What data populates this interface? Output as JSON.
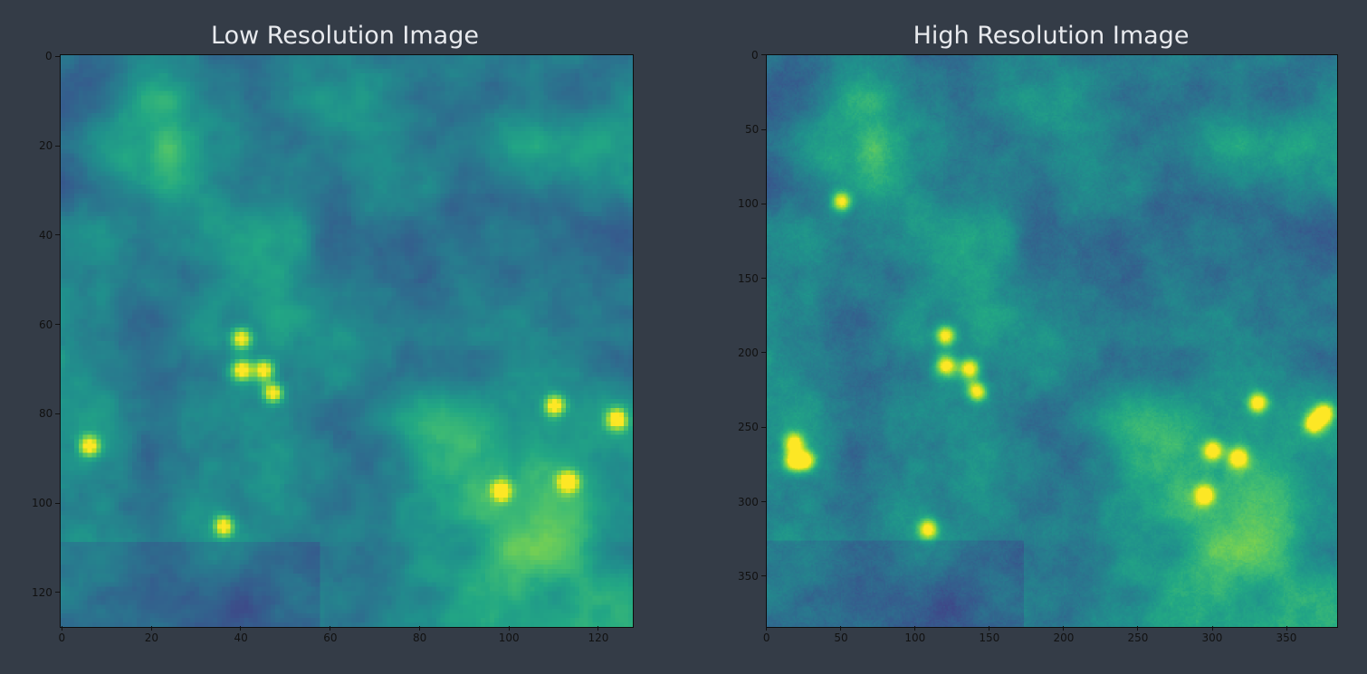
{
  "figure": {
    "colormap": "viridis",
    "background": "#343c47"
  },
  "panels": [
    {
      "title": "Low Resolution Image",
      "image_size": 128,
      "resolution": "low",
      "x_ticks": [
        "0",
        "20",
        "40",
        "60",
        "80",
        "100",
        "120"
      ],
      "x_tick_values": [
        0,
        20,
        40,
        60,
        80,
        100,
        120
      ],
      "y_ticks": [
        "0",
        "20",
        "40",
        "60",
        "80",
        "100",
        "120"
      ],
      "y_tick_values": [
        0,
        20,
        40,
        60,
        80,
        100,
        120
      ],
      "bright_spots": [
        {
          "x": 40,
          "y": 63
        },
        {
          "x": 40,
          "y": 70
        },
        {
          "x": 45,
          "y": 70
        },
        {
          "x": 47,
          "y": 75
        },
        {
          "x": 110,
          "y": 78
        },
        {
          "x": 124,
          "y": 81
        },
        {
          "x": 6,
          "y": 87
        },
        {
          "x": 98,
          "y": 97
        },
        {
          "x": 36,
          "y": 105
        },
        {
          "x": 113,
          "y": 95
        }
      ]
    },
    {
      "title": "High Resolution Image",
      "image_size": 384,
      "resolution": "high",
      "x_ticks": [
        "0",
        "50",
        "100",
        "150",
        "200",
        "250",
        "300",
        "350"
      ],
      "x_tick_values": [
        0,
        50,
        100,
        150,
        200,
        250,
        300,
        350
      ],
      "y_ticks": [
        "0",
        "50",
        "100",
        "150",
        "200",
        "250",
        "300",
        "350"
      ],
      "y_tick_values": [
        0,
        50,
        100,
        150,
        200,
        250,
        300,
        350
      ],
      "bright_spots": [
        {
          "x": 120,
          "y": 188
        },
        {
          "x": 120,
          "y": 208
        },
        {
          "x": 136,
          "y": 210
        },
        {
          "x": 141,
          "y": 225
        },
        {
          "x": 330,
          "y": 233
        },
        {
          "x": 375,
          "y": 240
        },
        {
          "x": 368,
          "y": 247
        },
        {
          "x": 18,
          "y": 260
        },
        {
          "x": 26,
          "y": 272
        },
        {
          "x": 18,
          "y": 272
        },
        {
          "x": 300,
          "y": 265
        },
        {
          "x": 317,
          "y": 270
        },
        {
          "x": 294,
          "y": 295
        },
        {
          "x": 108,
          "y": 318
        },
        {
          "x": 50,
          "y": 98
        }
      ]
    }
  ]
}
